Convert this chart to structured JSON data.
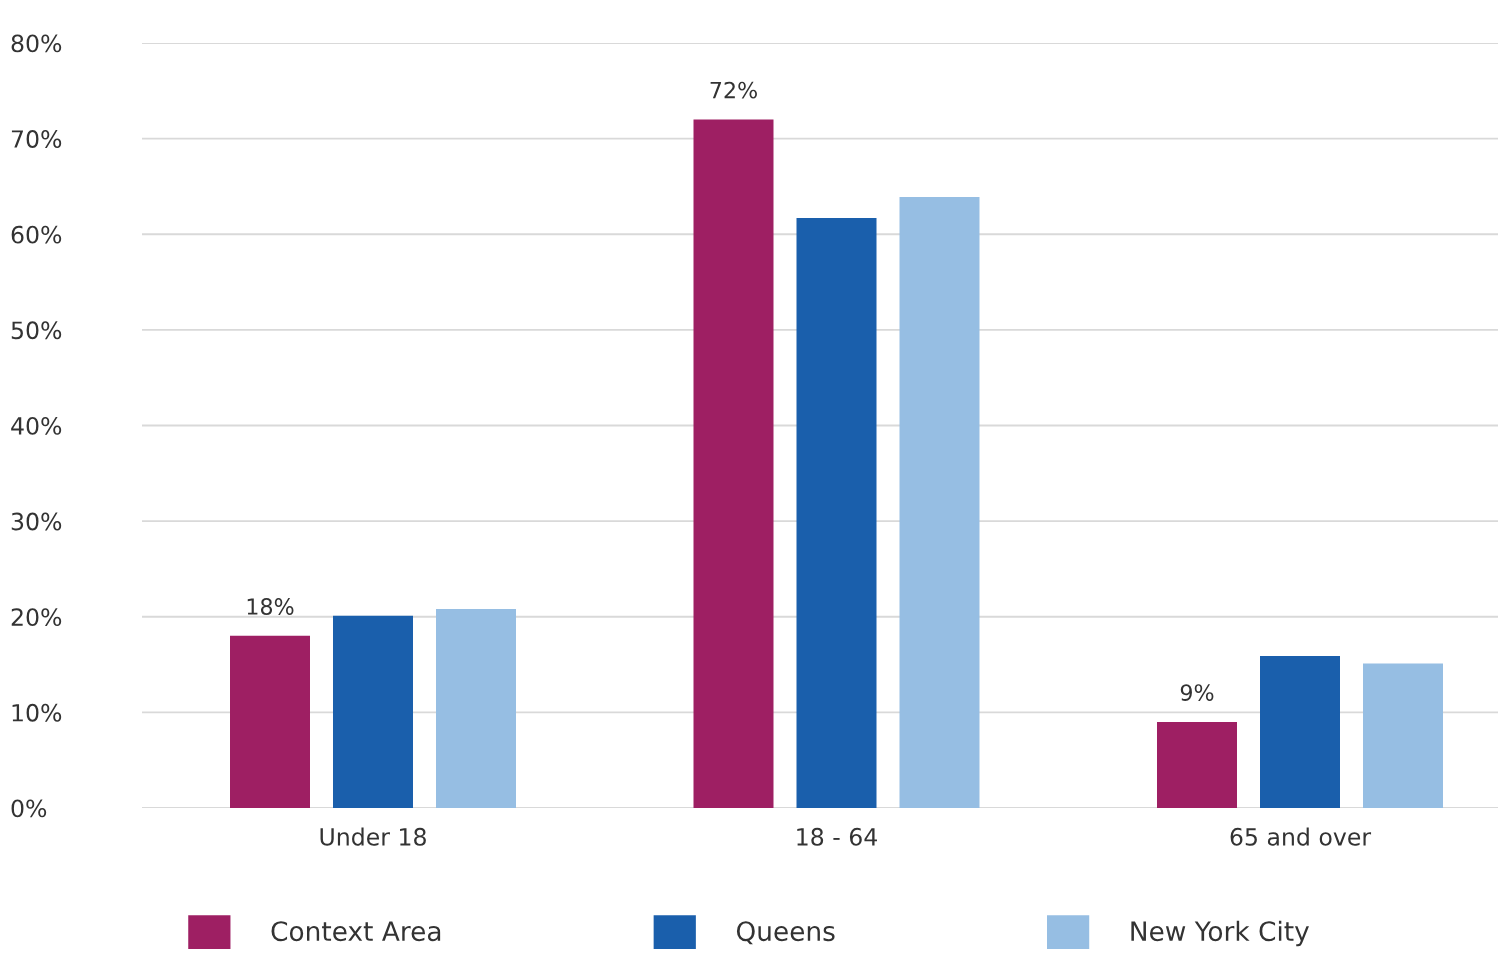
{
  "chart_data": {
    "type": "bar",
    "categories": [
      "Under 18",
      "18 - 64",
      "65 and over"
    ],
    "series": [
      {
        "name": "Context Area",
        "color": "#9e1f63",
        "values": [
          18,
          72,
          9
        ],
        "value_labels": [
          "18%",
          "72%",
          "9%"
        ]
      },
      {
        "name": "Queens",
        "color": "#1a5fac",
        "values": [
          20.1,
          61.7,
          15.9
        ]
      },
      {
        "name": "New York City",
        "color": "#96bee3",
        "values": [
          20.8,
          63.9,
          15.1
        ]
      }
    ],
    "ylim": [
      0,
      80
    ],
    "yticks": [
      {
        "value": 0,
        "label": "0%"
      },
      {
        "value": 10,
        "label": "10%"
      },
      {
        "value": 20,
        "label": "20%"
      },
      {
        "value": 30,
        "label": "30%"
      },
      {
        "value": 40,
        "label": "40%"
      },
      {
        "value": 50,
        "label": "50%"
      },
      {
        "value": 60,
        "label": "60%"
      },
      {
        "value": 70,
        "label": "70%"
      },
      {
        "value": 80,
        "label": "80%"
      }
    ],
    "grid": "y",
    "legend": "bottom"
  }
}
